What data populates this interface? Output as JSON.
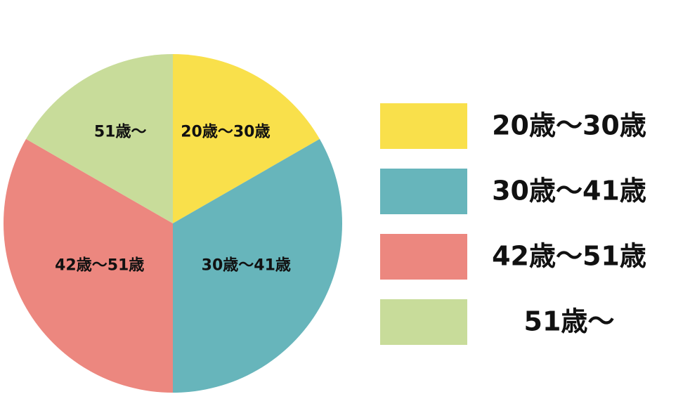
{
  "chart_data": {
    "type": "pie",
    "categories": [
      "20歳〜30歳",
      "30歳〜41歳",
      "42歳〜51歳",
      "51歳〜"
    ],
    "values": [
      16.7,
      33.3,
      33.3,
      16.7
    ],
    "colors": [
      "#f9e04b",
      "#67b5bb",
      "#ec877f",
      "#c8dc9a"
    ]
  }
}
